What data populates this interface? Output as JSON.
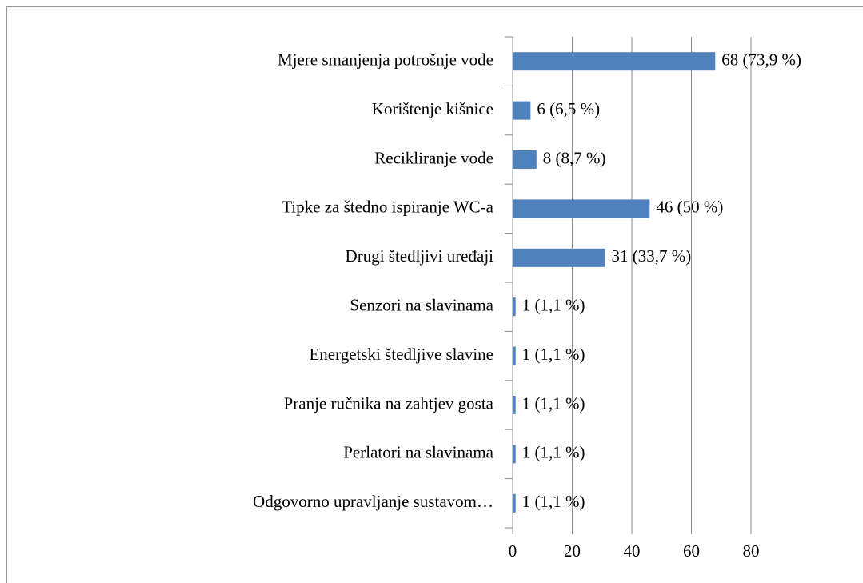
{
  "chart_data": {
    "type": "bar",
    "orientation": "horizontal",
    "categories": [
      "Mjere smanjenja potrošnje vode",
      "Korištenje kišnice",
      "Recikliranje vode",
      "Tipke za štedno ispiranje WC-a",
      "Drugi štedljivi uređaji",
      "Senzori na slavinama",
      "Energetski štedljive slavine",
      "Pranje ručnika na zahtjev gosta",
      "Perlatori na slavinama",
      "Odgovorno upravljanje sustavom…"
    ],
    "values": [
      68,
      6,
      8,
      46,
      31,
      1,
      1,
      1,
      1,
      1
    ],
    "value_labels": [
      "68 (73,9 %)",
      "6 (6,5 %)",
      "8 (8,7 %)",
      "46 (50 %)",
      "31 (33,7 %)",
      "1 (1,1 %)",
      "1 (1,1 %)",
      "1 (1,1 %)",
      "1 (1,1 %)",
      "1 (1,1 %)"
    ],
    "color": "#4f81bd",
    "xlim": [
      0,
      80
    ],
    "xticks": [
      0,
      20,
      40,
      60,
      80
    ],
    "grid": true
  }
}
